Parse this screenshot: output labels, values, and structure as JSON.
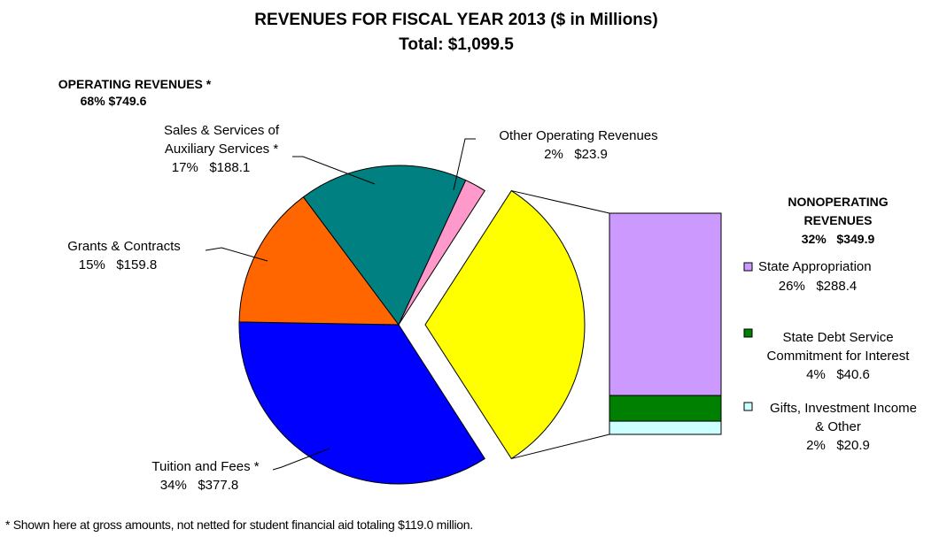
{
  "chart_data": {
    "type": "pie",
    "title": "REVENUES FOR FISCAL YEAR 2013 ($ in Millions)",
    "subtitle": "Total:  $1,099.5",
    "operating": {
      "heading": "OPERATING REVENUES *",
      "summary": "68%   $749.6",
      "slices": [
        {
          "key": "tuition",
          "label": "Tuition and Fees *",
          "value_text": "34%   $377.8",
          "value": 377.8,
          "percent": 34,
          "color": "#0000ff"
        },
        {
          "key": "grants",
          "label": "Grants & Contracts",
          "value_text": "15%   $159.8",
          "value": 159.8,
          "percent": 15,
          "color": "#ff6600"
        },
        {
          "key": "auxiliary",
          "label_line1": "Sales & Services of",
          "label_line2": "Auxiliary Services *",
          "value_text": "17%   $188.1",
          "value": 188.1,
          "percent": 17,
          "color": "#008080"
        },
        {
          "key": "other_operating",
          "label": "Other Operating Revenues",
          "value_text": "2%   $23.9",
          "value": 23.9,
          "percent": 2,
          "color": "#ff99cc"
        }
      ]
    },
    "nonoperating": {
      "heading_line1": "NONOPERATING",
      "heading_line2": "REVENUES",
      "summary": "32%   $349.9",
      "value": 349.9,
      "percent": 32,
      "color": "#ffff00",
      "components": [
        {
          "key": "state_appropriation",
          "label": "State Appropriation",
          "value_text": "26%   $288.4",
          "value": 288.4,
          "percent": 26,
          "color": "#cc99ff"
        },
        {
          "key": "state_debt",
          "label_line1": "State Debt Service",
          "label_line2": "Commitment for Interest",
          "value_text": "4%   $40.6",
          "value": 40.6,
          "percent": 4,
          "color": "#008000"
        },
        {
          "key": "gifts",
          "label_line1": "Gifts, Investment Income",
          "label_line2": "& Other",
          "value_text": "2%   $20.9",
          "value": 20.9,
          "percent": 2,
          "color": "#ccffff"
        }
      ]
    }
  },
  "footnote": "* Shown here at gross amounts, not netted for student financial aid totaling $119.0 million."
}
